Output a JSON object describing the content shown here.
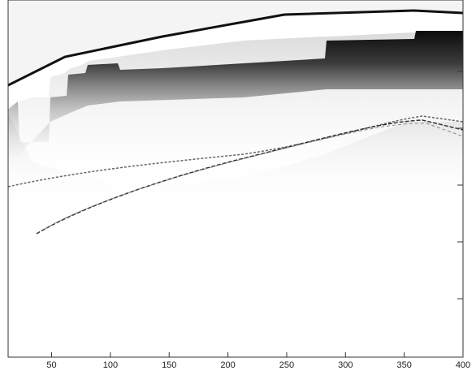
{
  "chart_data": {
    "type": "image",
    "xlim": [
      13,
      400
    ],
    "xticks": [
      50,
      100,
      150,
      200,
      250,
      300,
      350,
      400
    ]
  }
}
